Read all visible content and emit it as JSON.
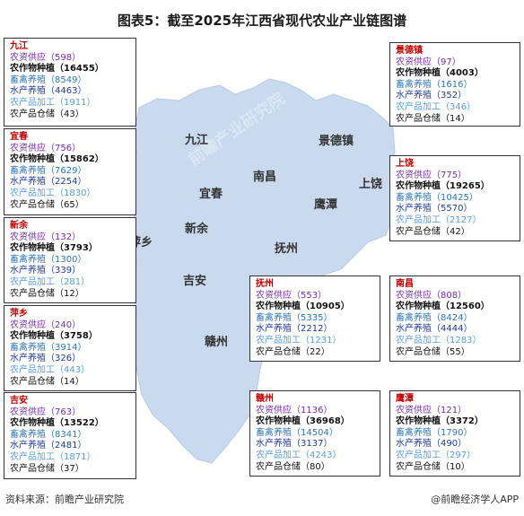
{
  "title": "图表5：截至2025年江西省现代农业产业链图谱",
  "map_labels": {
    "jiujiang": "九江",
    "jingdezhen": "景德镇",
    "nanchang": "南昌",
    "shangrao": "上饶",
    "yichun": "宜春",
    "yingtan": "鹰潭",
    "xinyu": "新余",
    "fuzhou": "抚州",
    "pingxiang": "萍乡",
    "jian": "吉安",
    "ganzhou": "赣州"
  },
  "panels": [
    {
      "name": "九江",
      "rows": [
        {
          "label": "农资供应",
          "value": "598"
        },
        {
          "label": "农作物种植",
          "value": "16455"
        },
        {
          "label": "畜禽养殖",
          "value": "8549"
        },
        {
          "label": "水产养殖",
          "value": "4463"
        },
        {
          "label": "农产品加工",
          "value": "1911"
        },
        {
          "label": "农产品仓储",
          "value": "43"
        }
      ]
    },
    {
      "name": "宜春",
      "rows": [
        {
          "label": "农资供应",
          "value": "756"
        },
        {
          "label": "农作物种植",
          "value": "15862"
        },
        {
          "label": "畜禽养殖",
          "value": "7629"
        },
        {
          "label": "水产养殖",
          "value": "2254"
        },
        {
          "label": "农产品加工",
          "value": "1830"
        },
        {
          "label": "农产品仓储",
          "value": "65"
        }
      ]
    },
    {
      "name": "新余",
      "rows": [
        {
          "label": "农资供应",
          "value": "132"
        },
        {
          "label": "农作物种植",
          "value": "3793"
        },
        {
          "label": "畜禽养殖",
          "value": "1300"
        },
        {
          "label": "水产养殖",
          "value": "339"
        },
        {
          "label": "农产品加工",
          "value": "281"
        },
        {
          "label": "农产品仓储",
          "value": "12"
        }
      ]
    },
    {
      "name": "萍乡",
      "rows": [
        {
          "label": "农资供应",
          "value": "240"
        },
        {
          "label": "农作物种植",
          "value": "3758"
        },
        {
          "label": "畜禽养殖",
          "value": "3914"
        },
        {
          "label": "水产养殖",
          "value": "326"
        },
        {
          "label": "农产品加工",
          "value": "443"
        },
        {
          "label": "农产品仓储",
          "value": "14"
        }
      ]
    },
    {
      "name": "吉安",
      "rows": [
        {
          "label": "农资供应",
          "value": "763"
        },
        {
          "label": "农作物种植",
          "value": "13522"
        },
        {
          "label": "畜禽养殖",
          "value": "8341"
        },
        {
          "label": "水产养殖",
          "value": "2481"
        },
        {
          "label": "农产品加工",
          "value": "1871"
        },
        {
          "label": "农产品仓储",
          "value": "37"
        }
      ]
    },
    {
      "name": "景德镇",
      "rows": [
        {
          "label": "农资供应",
          "value": "97"
        },
        {
          "label": "农作物种植",
          "value": "4003"
        },
        {
          "label": "畜禽养殖",
          "value": "1616"
        },
        {
          "label": "水产养殖",
          "value": "352"
        },
        {
          "label": "农产品加工",
          "value": "346"
        },
        {
          "label": "农产品仓储",
          "value": "14"
        }
      ]
    },
    {
      "name": "上饶",
      "rows": [
        {
          "label": "农资供应",
          "value": "775"
        },
        {
          "label": "农作物种植",
          "value": "19265"
        },
        {
          "label": "畜禽养殖",
          "value": "10425"
        },
        {
          "label": "水产养殖",
          "value": "5570"
        },
        {
          "label": "农产品加工",
          "value": "2127"
        },
        {
          "label": "农产品仓储",
          "value": "42"
        }
      ]
    },
    {
      "name": "抚州",
      "rows": [
        {
          "label": "农资供应",
          "value": "553"
        },
        {
          "label": "农作物种植",
          "value": "10905"
        },
        {
          "label": "畜禽养殖",
          "value": "5335"
        },
        {
          "label": "水产养殖",
          "value": "2212"
        },
        {
          "label": "农产品加工",
          "value": "1231"
        },
        {
          "label": "农产品仓储",
          "value": "22"
        }
      ]
    },
    {
      "name": "南昌",
      "rows": [
        {
          "label": "农资供应",
          "value": "808"
        },
        {
          "label": "农作物种植",
          "value": "12560"
        },
        {
          "label": "畜禽养殖",
          "value": "8424"
        },
        {
          "label": "水产养殖",
          "value": "4444"
        },
        {
          "label": "农产品加工",
          "value": "1283"
        },
        {
          "label": "农产品仓储",
          "value": "55"
        }
      ]
    },
    {
      "name": "赣州",
      "rows": [
        {
          "label": "农资供应",
          "value": "1136"
        },
        {
          "label": "农作物种植",
          "value": "36968"
        },
        {
          "label": "畜禽养殖",
          "value": "14504"
        },
        {
          "label": "水产养殖",
          "value": "3137"
        },
        {
          "label": "农产品加工",
          "value": "4243"
        },
        {
          "label": "农产品仓储",
          "value": "80"
        }
      ]
    },
    {
      "name": "鹰潭",
      "rows": [
        {
          "label": "农资供应",
          "value": "121"
        },
        {
          "label": "农作物种植",
          "value": "3372"
        },
        {
          "label": "畜禽养殖",
          "value": "1790"
        },
        {
          "label": "水产养殖",
          "value": "490"
        },
        {
          "label": "农产品加工",
          "value": "297"
        },
        {
          "label": "农产品仓储",
          "value": "10"
        }
      ]
    }
  ],
  "source": "资料来源：前瞻产业研究院",
  "credit": "@前瞻经济学人APP",
  "watermark": "前瞻产业研究院",
  "colors": {
    "map_fill": "#c9daef",
    "panel_title": "#c00000"
  }
}
